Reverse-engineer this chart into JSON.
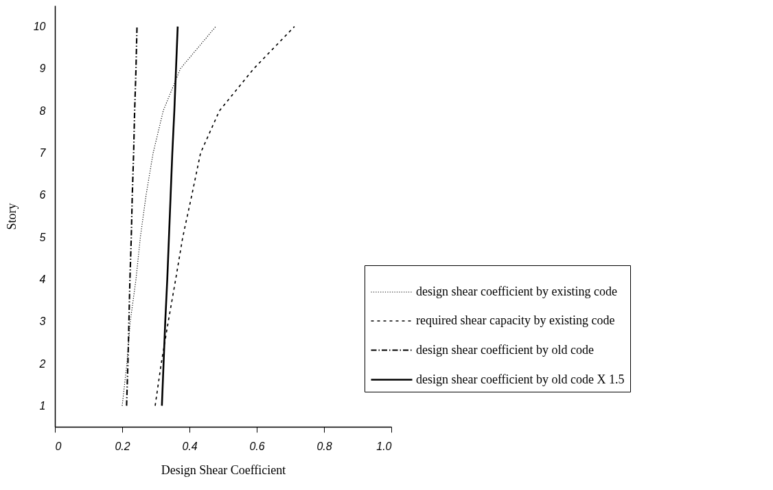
{
  "chart_data": {
    "type": "line",
    "xlabel": "Design Shear Coefficient",
    "ylabel": "Story",
    "xlim": [
      0,
      1.0
    ],
    "xticks": [
      0,
      0.2,
      0.4,
      0.6,
      0.8,
      {
        "value": 1.0,
        "label": "1.0"
      }
    ],
    "ylim": [
      0.5,
      10.5
    ],
    "yticks": [
      1,
      2,
      3,
      4,
      5,
      6,
      7,
      8,
      9,
      10
    ],
    "grid": false,
    "legend": "bottom right",
    "marker": "none",
    "series": [
      {
        "name": "design shear coefficient by existing code",
        "color": "#000000",
        "line_style": "dotted",
        "x": [
          0.2,
          0.214,
          0.224,
          0.241,
          0.254,
          0.271,
          0.292,
          0.322,
          0.373,
          0.478
        ],
        "values": [
          1,
          2,
          3,
          4,
          5,
          6,
          7,
          8,
          9,
          10
        ]
      },
      {
        "name": "required shear capacity by existing code",
        "color": "#000000",
        "line_style": "dashed",
        "x": [
          0.298,
          0.316,
          0.337,
          0.359,
          0.38,
          0.407,
          0.433,
          0.489,
          0.591,
          0.712
        ],
        "values": [
          1,
          2,
          3,
          4,
          5,
          6,
          7,
          8,
          9,
          10
        ]
      },
      {
        "name": "design shear coefficient by old code",
        "color": "#000000",
        "line_style": "dashdot",
        "x": [
          0.213,
          0.217,
          0.22,
          0.223,
          0.227,
          0.23,
          0.234,
          0.237,
          0.241,
          0.244
        ],
        "values": [
          1,
          2,
          3,
          4,
          5,
          6,
          7,
          8,
          9,
          10
        ]
      },
      {
        "name": "design shear coefficient by old code X 1.5",
        "color": "#000000",
        "line_style": "solid",
        "x": [
          0.318,
          0.323,
          0.328,
          0.334,
          0.339,
          0.344,
          0.349,
          0.355,
          0.36,
          0.365
        ],
        "values": [
          1,
          2,
          3,
          4,
          5,
          6,
          7,
          8,
          9,
          10
        ]
      }
    ]
  }
}
